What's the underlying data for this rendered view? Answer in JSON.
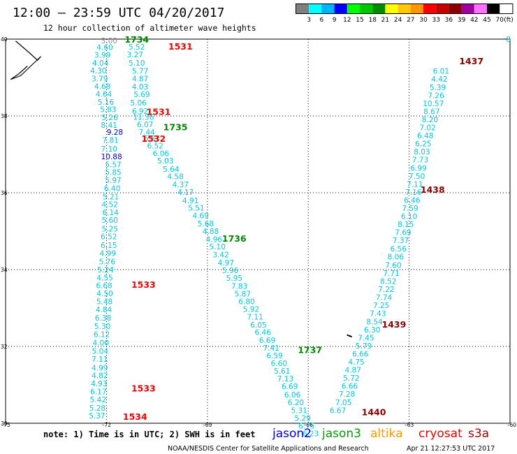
{
  "header": {
    "title": "12:00 – 23:59 UTC 04/20/2017",
    "subtitle": "12 hour collection of altimeter wave heights"
  },
  "colorbar": {
    "unit": "(ft)",
    "labels": [
      "3",
      "6",
      "9",
      "12",
      "15",
      "18",
      "21",
      "24",
      "27",
      "30",
      "33",
      "36",
      "39",
      "42",
      "45",
      "70"
    ],
    "colors": [
      "#7f7f7f",
      "#00ffff",
      "#00b4ff",
      "#0000ff",
      "#00ff00",
      "#00c800",
      "#008c00",
      "#ffff00",
      "#ffc800",
      "#ff9600",
      "#ff0000",
      "#c80000",
      "#8c0000",
      "#a000a0",
      "#ff70ff",
      "#000000"
    ]
  },
  "footer": {
    "note": "note:  1) Time is in UTC; 2) SWH is in feet",
    "credit": "NOAA/NESDIS Center for Satellite Applications and Research",
    "timestamp": "Apr 21 12:27:53 UTC 2017"
  },
  "legend": [
    {
      "label": "jason2",
      "color": "#0000dd"
    },
    {
      "label": "jason3",
      "color": "#00a000"
    },
    {
      "label": "altika",
      "color": "#ff9900"
    },
    {
      "label": "cryosat",
      "color": "#ee0000"
    },
    {
      "label": "s3a",
      "color": "#aa0000"
    }
  ],
  "chart_data": {
    "type": "scatter",
    "title": "12:00 – 23:59 UTC 04/20/2017",
    "xlim": [
      -75,
      -60
    ],
    "ylim": [
      30,
      40
    ],
    "xticks": [
      -75,
      -72,
      -69,
      -66,
      -63,
      -60
    ],
    "xtick_labels": [
      "–75",
      "–72",
      "–69",
      "–66",
      "–63",
      "–60"
    ],
    "yticks": [
      30,
      32,
      34,
      36,
      38,
      40
    ],
    "ytick_labels": [
      "30",
      "32",
      "34",
      "36",
      "38",
      "40"
    ],
    "grid": true,
    "coastline": [
      [
        -74.7,
        39.95
      ],
      [
        -74.3,
        39.65
      ],
      [
        -74.05,
        39.45
      ],
      [
        -73.95,
        39.55
      ],
      [
        -74.25,
        39.3
      ],
      [
        -74.55,
        39.05
      ],
      [
        -74.85,
        38.95
      ],
      [
        -74.6,
        39.1
      ],
      [
        -74.35,
        39.3
      ]
    ],
    "misc_mark": [
      [
        -64.7,
        32.25
      ],
      [
        -64.85,
        32.3
      ]
    ],
    "value_colors": {
      "grey": "#8c8c8c",
      "cyan": "#00c8dc",
      "blue": "#0000cc"
    },
    "tracks": [
      {
        "values": [
          "3.00",
          "4.60",
          "3.99",
          "4.04",
          "4.30",
          "3.79",
          "4.68",
          "4.64",
          "5.16",
          "5.83",
          "5.26",
          "8.41",
          "9.28",
          "7.81",
          "7.10",
          "10.88",
          "5.57",
          "5.85",
          "5.97",
          "6.40",
          "5.21",
          "4.52",
          "6.14",
          "5.60",
          "5.25",
          "6.52",
          "6.15",
          "4.99",
          "5.76",
          "5.24",
          "4.55",
          "6.68",
          "4.50",
          "5.48",
          "4.84",
          "6.38",
          "5.30",
          "6.12",
          "4.00",
          "5.04",
          "7.11",
          "4.99",
          "4.82",
          "4.93",
          "6.17",
          "5.42",
          "5.28",
          "5.37"
        ],
        "lon": [
          -71.92,
          -72.05,
          -72.12,
          -72.18,
          -72.24,
          -72.2,
          -72.12,
          -72.08,
          -72.02,
          -71.95,
          -71.9,
          -71.92,
          -71.75,
          -71.88,
          -71.92,
          -71.85,
          -71.8,
          -71.8,
          -71.8,
          -71.83,
          -71.87,
          -71.9,
          -71.88,
          -71.9,
          -71.9,
          -71.93,
          -71.93,
          -71.96,
          -71.98,
          -72.03,
          -72.05,
          -72.07,
          -72.05,
          -72.06,
          -72.08,
          -72.1,
          -72.12,
          -72.14,
          -72.17,
          -72.19,
          -72.2,
          -72.2,
          -72.2,
          -72.22,
          -72.24,
          -72.25,
          -72.27,
          -72.28
        ],
        "lat": [
          39.96,
          39.79,
          39.59,
          39.38,
          39.18,
          38.97,
          38.77,
          38.57,
          38.36,
          38.17,
          37.96,
          37.76,
          37.58,
          37.37,
          37.15,
          36.95,
          36.74,
          36.54,
          36.33,
          36.12,
          35.9,
          35.7,
          35.49,
          35.29,
          35.06,
          34.86,
          34.64,
          34.43,
          34.21,
          34.0,
          33.79,
          33.59,
          33.38,
          33.17,
          32.96,
          32.75,
          32.53,
          32.32,
          32.1,
          31.88,
          31.67,
          31.45,
          31.25,
          31.04,
          30.83,
          30.62,
          30.4,
          30.2
        ],
        "colors": [
          "grey",
          "cyan",
          "cyan",
          "cyan",
          "cyan",
          "cyan",
          "cyan",
          "cyan",
          "cyan",
          "cyan",
          "cyan",
          "cyan",
          "blue",
          "cyan",
          "cyan",
          "blue",
          "cyan",
          "cyan",
          "cyan",
          "cyan",
          "cyan",
          "cyan",
          "cyan",
          "cyan",
          "cyan",
          "cyan",
          "cyan",
          "cyan",
          "cyan",
          "cyan",
          "cyan",
          "cyan",
          "cyan",
          "cyan",
          "cyan",
          "cyan",
          "cyan",
          "cyan",
          "cyan",
          "cyan",
          "cyan",
          "cyan",
          "cyan",
          "cyan",
          "cyan",
          "cyan",
          "cyan",
          "cyan"
        ]
      },
      {
        "values": [
          "5.52",
          "3.27",
          "5.10",
          "5.77",
          "4.87",
          "4.03",
          "5.69",
          "5.06",
          "6.92",
          "11.36",
          "6.07",
          "7.44",
          "6.57",
          "6.52",
          "6.06",
          "5.03",
          "5.64",
          "4.58",
          "4.37",
          "4.17",
          "4.91",
          "5.51",
          "4.69",
          "5.68",
          "4.88",
          "4.96",
          "5.10",
          "3.42",
          "4.97",
          "5.96",
          "5.95",
          "7.83",
          "5.87",
          "6.80",
          "5.92",
          "7.11",
          "6.05",
          "6.46",
          "6.69",
          "7.41",
          "6.59",
          "6.60",
          "5.61",
          "7.13",
          "6.69",
          "6.06",
          "6.20",
          "5.31",
          "5.29",
          "6.75",
          "6.23"
        ],
        "lon": [
          -71.1,
          -71.15,
          -71.1,
          -71.0,
          -71.0,
          -71.0,
          -70.95,
          -71.05,
          -71.0,
          -70.9,
          -70.85,
          -70.8,
          -70.65,
          -70.55,
          -70.38,
          -70.25,
          -70.08,
          -69.95,
          -69.8,
          -69.65,
          -69.5,
          -69.33,
          -69.2,
          -69.05,
          -68.9,
          -68.8,
          -68.7,
          -68.6,
          -68.45,
          -68.32,
          -68.2,
          -68.05,
          -67.95,
          -67.83,
          -67.7,
          -67.58,
          -67.48,
          -67.35,
          -67.22,
          -67.1,
          -67.0,
          -66.87,
          -66.78,
          -66.68,
          -66.55,
          -66.47,
          -66.37,
          -66.27,
          -66.17,
          -66.05,
          -65.93
        ],
        "lat": [
          39.8,
          39.6,
          39.38,
          39.17,
          38.97,
          38.76,
          38.56,
          38.35,
          38.13,
          37.97,
          37.78,
          37.58,
          37.42,
          37.23,
          37.03,
          36.84,
          36.62,
          36.43,
          36.22,
          36.02,
          35.8,
          35.61,
          35.41,
          35.2,
          35.0,
          34.79,
          34.6,
          34.39,
          34.18,
          33.98,
          33.78,
          33.57,
          33.37,
          33.17,
          32.97,
          32.77,
          32.56,
          32.37,
          32.16,
          31.96,
          31.76,
          31.56,
          31.36,
          31.16,
          30.96,
          30.75,
          30.55,
          30.34,
          30.14,
          29.94,
          29.74
        ]
      },
      {
        "values": [
          "6.67",
          "7.05",
          "7.28",
          "6.66",
          "5.72",
          "4.87",
          "4.75",
          "6.66",
          "5.79",
          "7.45",
          "6.30",
          "8.54",
          "7.43",
          "7.25",
          "7.74",
          "7.22",
          "8.52",
          "7.71",
          "7.60",
          "8.06",
          "6.56",
          "7.37",
          "7.69",
          "8.15",
          "6.10",
          "7.59",
          "6.46",
          "7.16",
          "7.11",
          "7.50",
          "6.99",
          "7.73",
          "8.03",
          "6.25",
          "6.48",
          "7.02",
          "8.20",
          "8.67",
          "10.57",
          "7.26",
          "5.39",
          "4.42",
          "6.01"
        ],
        "lon": [
          -65.12,
          -64.95,
          -64.85,
          -64.77,
          -64.72,
          -64.67,
          -64.57,
          -64.45,
          -64.35,
          -64.28,
          -64.1,
          -64.03,
          -63.93,
          -63.83,
          -63.75,
          -63.68,
          -63.62,
          -63.53,
          -63.47,
          -63.4,
          -63.32,
          -63.25,
          -63.18,
          -63.1,
          -63.0,
          -62.97,
          -62.91,
          -62.87,
          -62.83,
          -62.77,
          -62.72,
          -62.67,
          -62.62,
          -62.58,
          -62.52,
          -62.45,
          -62.38,
          -62.33,
          -62.28,
          -62.2,
          -62.15,
          -62.1,
          -62.05
        ],
        "lat": [
          30.34,
          30.55,
          30.76,
          30.97,
          31.18,
          31.39,
          31.6,
          31.81,
          32.02,
          32.23,
          32.44,
          32.65,
          32.86,
          33.07,
          33.28,
          33.49,
          33.7,
          33.91,
          34.12,
          34.34,
          34.55,
          34.76,
          34.97,
          35.18,
          35.39,
          35.6,
          35.81,
          36.02,
          36.23,
          36.44,
          36.65,
          36.86,
          37.07,
          37.28,
          37.49,
          37.7,
          37.91,
          38.12,
          38.33,
          38.54,
          38.75,
          38.96,
          39.17
        ]
      }
    ],
    "time_labels": [
      {
        "text": "1734",
        "color": "#008800",
        "lon": -71.1,
        "lat": 39.98
      },
      {
        "text": "1531",
        "color": "#ee0000",
        "lon": -69.8,
        "lat": 39.8
      },
      {
        "text": "1531",
        "color": "#ee0000",
        "lon": -70.45,
        "lat": 38.1
      },
      {
        "text": "1735",
        "color": "#008800",
        "lon": -69.95,
        "lat": 37.7
      },
      {
        "text": "1532",
        "color": "#ee0000",
        "lon": -70.6,
        "lat": 37.4
      },
      {
        "text": "1736",
        "color": "#008800",
        "lon": -68.2,
        "lat": 34.8
      },
      {
        "text": "1533",
        "color": "#ee0000",
        "lon": -70.9,
        "lat": 33.6
      },
      {
        "text": "1737",
        "color": "#008800",
        "lon": -65.95,
        "lat": 31.9
      },
      {
        "text": "1533",
        "color": "#ee0000",
        "lon": -70.9,
        "lat": 30.9
      },
      {
        "text": "1534",
        "color": "#ee0000",
        "lon": -71.15,
        "lat": 30.16
      },
      {
        "text": "1437",
        "color": "#880000",
        "lon": -61.15,
        "lat": 39.42
      },
      {
        "text": "1438",
        "color": "#880000",
        "lon": -62.3,
        "lat": 36.07
      },
      {
        "text": "1439",
        "color": "#880000",
        "lon": -63.45,
        "lat": 32.56
      },
      {
        "text": "1440",
        "color": "#880000",
        "lon": -64.05,
        "lat": 30.28
      }
    ],
    "edge_value": {
      "text": "8",
      "color": "#00c8dc",
      "lon": -60.05,
      "lat": 40.0
    }
  }
}
